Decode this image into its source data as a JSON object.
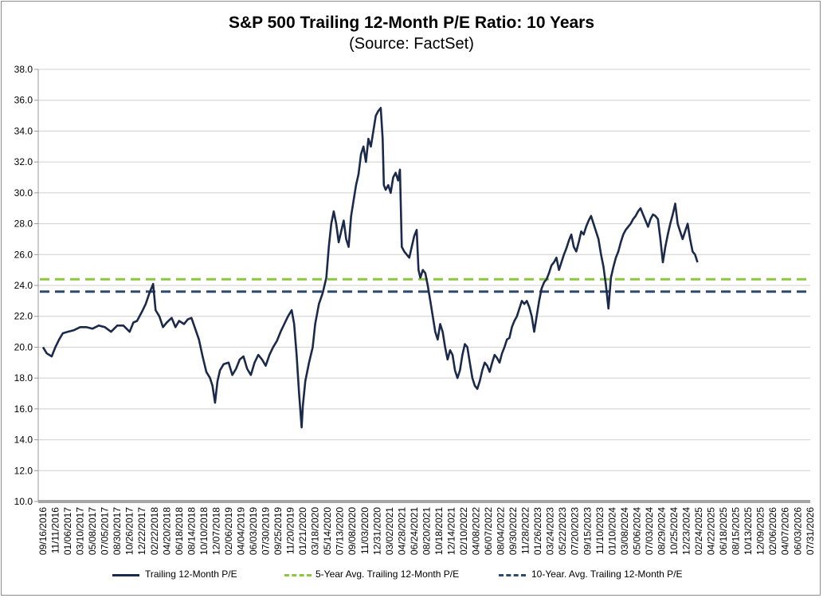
{
  "chart_data": {
    "type": "line",
    "title": "S&P 500 Trailing 12-Month P/E Ratio: 10 Years",
    "subtitle": "(Source: FactSet)",
    "ylim": [
      10,
      38
    ],
    "yticks": [
      "10.0",
      "12.0",
      "14.0",
      "16.0",
      "18.0",
      "20.0",
      "22.0",
      "24.0",
      "26.0",
      "28.0",
      "30.0",
      "32.0",
      "34.0",
      "36.0",
      "38.0"
    ],
    "xticks": [
      "09/16/2016",
      "11/11/2016",
      "01/06/2017",
      "03/10/2017",
      "05/08/2017",
      "07/05/2017",
      "08/30/2017",
      "10/26/2017",
      "12/22/2017",
      "02/22/2018",
      "04/20/2018",
      "06/18/2018",
      "08/14/2018",
      "10/10/2018",
      "12/07/2018",
      "02/06/2019",
      "04/04/2019",
      "06/03/2019",
      "07/30/2019",
      "09/25/2019",
      "11/20/2019",
      "01/21/2020",
      "03/18/2020",
      "05/14/2020",
      "07/13/2020",
      "09/08/2020",
      "11/03/2020",
      "12/31/2020",
      "03/02/2021",
      "04/28/2021",
      "06/24/2021",
      "08/20/2021",
      "10/18/2021",
      "12/14/2021",
      "02/10/2022",
      "04/08/2022",
      "06/07/2022",
      "08/04/2022",
      "09/30/2022",
      "11/28/2022",
      "01/26/2023",
      "03/24/2023",
      "05/22/2023",
      "07/20/2023",
      "09/15/2023",
      "11/10/2023",
      "01/10/2024",
      "03/08/2024",
      "05/06/2024",
      "07/03/2024",
      "08/29/2024",
      "10/25/2024",
      "12/23/2024",
      "02/24/2025",
      "04/22/2025",
      "06/18/2025",
      "08/15/2025",
      "10/13/2025",
      "12/09/2025",
      "02/06/2026",
      "04/07/2026",
      "06/03/2026",
      "07/31/2026"
    ],
    "series": [
      {
        "name": "Trailing 12-Month P/E",
        "color": "#1b2a4a",
        "style": "solid",
        "points": [
          [
            0,
            20.0
          ],
          [
            0.3,
            19.6
          ],
          [
            0.7,
            19.4
          ],
          [
            1.0,
            20.0
          ],
          [
            1.3,
            20.5
          ],
          [
            1.6,
            20.9
          ],
          [
            2.0,
            21.0
          ],
          [
            2.5,
            21.1
          ],
          [
            3.0,
            21.3
          ],
          [
            3.5,
            21.3
          ],
          [
            4.0,
            21.2
          ],
          [
            4.5,
            21.4
          ],
          [
            5.0,
            21.3
          ],
          [
            5.5,
            21.0
          ],
          [
            6.0,
            21.4
          ],
          [
            6.5,
            21.4
          ],
          [
            7.0,
            21.0
          ],
          [
            7.3,
            21.6
          ],
          [
            7.6,
            21.7
          ],
          [
            8.0,
            22.3
          ],
          [
            8.3,
            22.8
          ],
          [
            8.6,
            23.5
          ],
          [
            8.9,
            24.1
          ],
          [
            9.1,
            22.4
          ],
          [
            9.4,
            22.0
          ],
          [
            9.7,
            21.3
          ],
          [
            10.0,
            21.6
          ],
          [
            10.4,
            21.9
          ],
          [
            10.7,
            21.3
          ],
          [
            11.0,
            21.7
          ],
          [
            11.4,
            21.5
          ],
          [
            11.7,
            21.8
          ],
          [
            12.0,
            21.9
          ],
          [
            12.3,
            21.2
          ],
          [
            12.6,
            20.5
          ],
          [
            12.9,
            19.4
          ],
          [
            13.2,
            18.4
          ],
          [
            13.5,
            18.0
          ],
          [
            13.7,
            17.5
          ],
          [
            13.9,
            16.4
          ],
          [
            14.1,
            17.8
          ],
          [
            14.3,
            18.5
          ],
          [
            14.6,
            18.9
          ],
          [
            15.0,
            19.0
          ],
          [
            15.3,
            18.2
          ],
          [
            15.6,
            18.6
          ],
          [
            15.9,
            19.2
          ],
          [
            16.2,
            19.4
          ],
          [
            16.5,
            18.6
          ],
          [
            16.8,
            18.2
          ],
          [
            17.1,
            19.0
          ],
          [
            17.4,
            19.5
          ],
          [
            17.7,
            19.2
          ],
          [
            18.0,
            18.8
          ],
          [
            18.3,
            19.5
          ],
          [
            18.6,
            20.0
          ],
          [
            18.9,
            20.4
          ],
          [
            19.2,
            21.0
          ],
          [
            19.5,
            21.5
          ],
          [
            19.8,
            22.0
          ],
          [
            20.1,
            22.4
          ],
          [
            20.3,
            21.5
          ],
          [
            20.5,
            19.5
          ],
          [
            20.7,
            17.0
          ],
          [
            20.9,
            14.8
          ],
          [
            21.0,
            16.2
          ],
          [
            21.2,
            17.8
          ],
          [
            21.5,
            19.0
          ],
          [
            21.8,
            20.0
          ],
          [
            22.0,
            21.5
          ],
          [
            22.3,
            22.8
          ],
          [
            22.6,
            23.5
          ],
          [
            22.9,
            24.5
          ],
          [
            23.1,
            26.5
          ],
          [
            23.3,
            28.0
          ],
          [
            23.5,
            28.8
          ],
          [
            23.7,
            28.0
          ],
          [
            23.9,
            26.8
          ],
          [
            24.1,
            27.5
          ],
          [
            24.3,
            28.2
          ],
          [
            24.5,
            27.0
          ],
          [
            24.7,
            26.5
          ],
          [
            24.9,
            28.5
          ],
          [
            25.1,
            29.5
          ],
          [
            25.3,
            30.5
          ],
          [
            25.5,
            31.2
          ],
          [
            25.7,
            32.5
          ],
          [
            25.9,
            33.0
          ],
          [
            26.1,
            32.0
          ],
          [
            26.3,
            33.5
          ],
          [
            26.5,
            33.0
          ],
          [
            26.7,
            34.0
          ],
          [
            26.9,
            35.0
          ],
          [
            27.1,
            35.3
          ],
          [
            27.3,
            35.5
          ],
          [
            27.45,
            33.5
          ],
          [
            27.55,
            30.5
          ],
          [
            27.7,
            30.2
          ],
          [
            27.9,
            30.5
          ],
          [
            28.1,
            30.0
          ],
          [
            28.3,
            31.0
          ],
          [
            28.5,
            31.3
          ],
          [
            28.7,
            30.8
          ],
          [
            28.85,
            31.5
          ],
          [
            29.0,
            26.5
          ],
          [
            29.2,
            26.2
          ],
          [
            29.4,
            26.0
          ],
          [
            29.6,
            25.8
          ],
          [
            29.8,
            26.5
          ],
          [
            30.0,
            27.2
          ],
          [
            30.2,
            27.6
          ],
          [
            30.35,
            25.0
          ],
          [
            30.5,
            24.5
          ],
          [
            30.7,
            25.0
          ],
          [
            30.9,
            24.8
          ],
          [
            31.1,
            24.0
          ],
          [
            31.3,
            23.0
          ],
          [
            31.5,
            22.0
          ],
          [
            31.7,
            21.0
          ],
          [
            31.9,
            20.5
          ],
          [
            32.1,
            21.5
          ],
          [
            32.3,
            21.0
          ],
          [
            32.5,
            20.0
          ],
          [
            32.7,
            19.2
          ],
          [
            32.9,
            19.8
          ],
          [
            33.1,
            19.5
          ],
          [
            33.3,
            18.5
          ],
          [
            33.5,
            18.0
          ],
          [
            33.7,
            18.5
          ],
          [
            33.9,
            19.5
          ],
          [
            34.1,
            20.2
          ],
          [
            34.3,
            20.0
          ],
          [
            34.5,
            19.0
          ],
          [
            34.7,
            18.0
          ],
          [
            34.9,
            17.5
          ],
          [
            35.1,
            17.3
          ],
          [
            35.3,
            17.8
          ],
          [
            35.5,
            18.5
          ],
          [
            35.7,
            19.0
          ],
          [
            35.9,
            18.8
          ],
          [
            36.1,
            18.4
          ],
          [
            36.3,
            19.0
          ],
          [
            36.5,
            19.5
          ],
          [
            36.7,
            19.3
          ],
          [
            36.9,
            19.0
          ],
          [
            37.1,
            19.6
          ],
          [
            37.3,
            20.0
          ],
          [
            37.5,
            20.5
          ],
          [
            37.7,
            20.6
          ],
          [
            37.9,
            21.3
          ],
          [
            38.1,
            21.7
          ],
          [
            38.3,
            22.0
          ],
          [
            38.5,
            22.5
          ],
          [
            38.7,
            23.0
          ],
          [
            38.9,
            22.8
          ],
          [
            39.1,
            23.0
          ],
          [
            39.3,
            22.6
          ],
          [
            39.5,
            22.0
          ],
          [
            39.7,
            21.0
          ],
          [
            39.9,
            22.0
          ],
          [
            40.1,
            23.0
          ],
          [
            40.3,
            23.8
          ],
          [
            40.5,
            24.2
          ],
          [
            40.7,
            24.4
          ],
          [
            40.9,
            24.8
          ],
          [
            41.1,
            25.3
          ],
          [
            41.3,
            25.5
          ],
          [
            41.5,
            25.8
          ],
          [
            41.7,
            25.0
          ],
          [
            41.9,
            25.5
          ],
          [
            42.1,
            26.0
          ],
          [
            42.3,
            26.4
          ],
          [
            42.5,
            26.9
          ],
          [
            42.7,
            27.3
          ],
          [
            42.9,
            26.5
          ],
          [
            43.1,
            26.2
          ],
          [
            43.3,
            26.8
          ],
          [
            43.5,
            27.5
          ],
          [
            43.7,
            27.3
          ],
          [
            43.9,
            27.8
          ],
          [
            44.1,
            28.2
          ],
          [
            44.3,
            28.5
          ],
          [
            44.5,
            28.0
          ],
          [
            44.7,
            27.5
          ],
          [
            44.9,
            27.0
          ],
          [
            45.1,
            26.0
          ],
          [
            45.3,
            25.2
          ],
          [
            45.5,
            24.0
          ],
          [
            45.7,
            22.5
          ],
          [
            45.9,
            24.5
          ],
          [
            46.1,
            25.2
          ],
          [
            46.3,
            25.8
          ],
          [
            46.5,
            26.2
          ],
          [
            46.7,
            26.8
          ],
          [
            46.9,
            27.3
          ],
          [
            47.1,
            27.6
          ],
          [
            47.3,
            27.8
          ],
          [
            47.5,
            28.0
          ],
          [
            47.7,
            28.3
          ],
          [
            47.9,
            28.5
          ],
          [
            48.1,
            28.8
          ],
          [
            48.3,
            29.0
          ],
          [
            48.5,
            28.6
          ],
          [
            48.7,
            28.2
          ],
          [
            48.9,
            27.8
          ],
          [
            49.1,
            28.3
          ],
          [
            49.3,
            28.6
          ],
          [
            49.5,
            28.5
          ],
          [
            49.7,
            28.3
          ],
          [
            49.9,
            27.0
          ],
          [
            50.1,
            25.5
          ],
          [
            50.3,
            26.5
          ],
          [
            50.5,
            27.3
          ],
          [
            50.7,
            28.0
          ],
          [
            50.9,
            28.6
          ],
          [
            51.1,
            29.3
          ],
          [
            51.3,
            28.0
          ],
          [
            51.5,
            27.5
          ],
          [
            51.7,
            27.0
          ],
          [
            51.9,
            27.5
          ],
          [
            52.1,
            28.0
          ],
          [
            52.3,
            27.0
          ],
          [
            52.5,
            26.2
          ],
          [
            52.7,
            26.0
          ],
          [
            52.9,
            25.5
          ]
        ]
      },
      {
        "name": "5-Year Avg. Trailing 12-Month P/E",
        "color": "#8dc63f",
        "style": "dashed",
        "value": 24.4
      },
      {
        "name": "10-Year. Avg. Trailing 12-Month P/E",
        "color": "#2f4a6e",
        "style": "dashed",
        "value": 23.6
      }
    ],
    "legend": "bottom",
    "grid": true
  }
}
